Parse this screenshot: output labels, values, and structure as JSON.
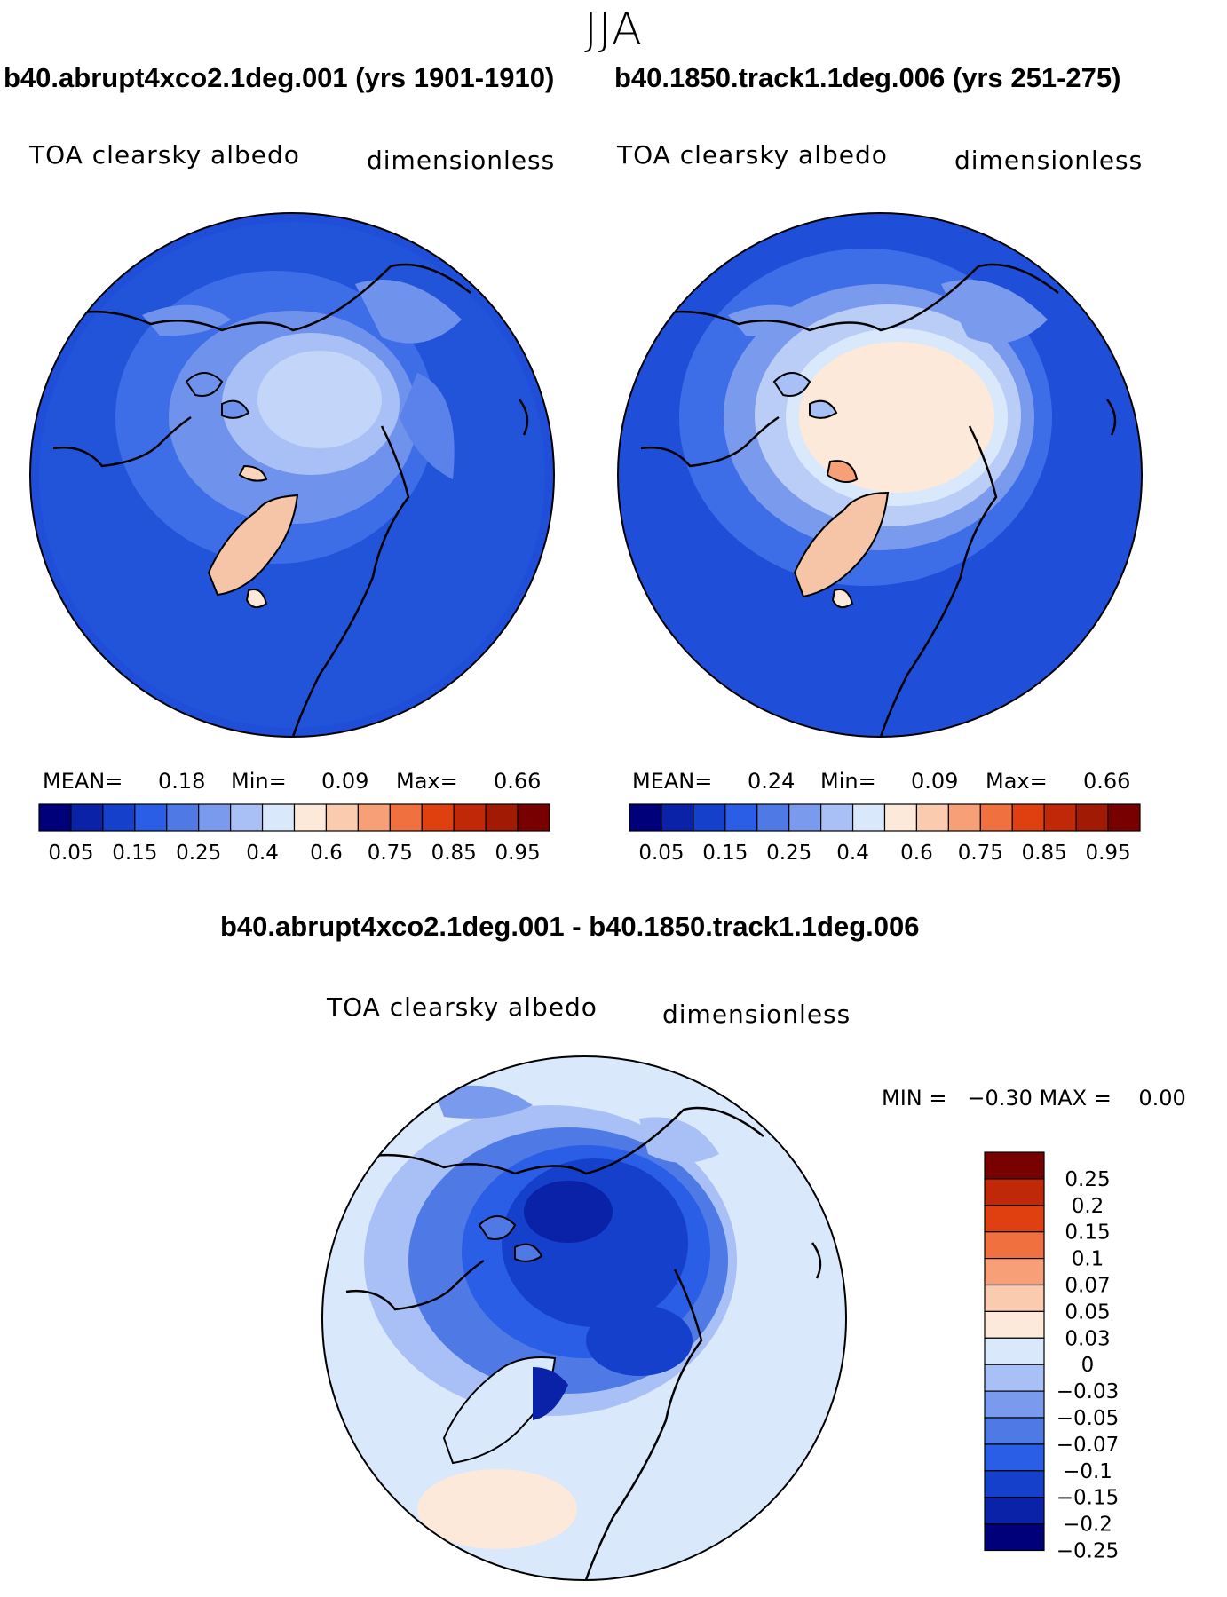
{
  "season": "JJA",
  "panels": [
    {
      "case_title": "b40.abrupt4xco2.1deg.001 (yrs 1901-1910)",
      "variable": "TOA clearsky albedo",
      "units": "dimensionless",
      "mean_label": "MEAN=",
      "mean_value": "0.18",
      "min_label": "Min=",
      "min_value": "0.09",
      "max_label": "Max=",
      "max_value": "0.66"
    },
    {
      "case_title": "b40.1850.track1.1deg.006 (yrs 251-275)",
      "variable": "TOA clearsky albedo",
      "units": "dimensionless",
      "mean_label": "MEAN=",
      "mean_value": "0.24",
      "min_label": "Min=",
      "min_value": "0.09",
      "max_label": "Max=",
      "max_value": "0.66"
    }
  ],
  "diff_panel": {
    "case_title": "b40.abrupt4xco2.1deg.001 - b40.1850.track1.1deg.006",
    "variable": "TOA clearsky albedo",
    "units": "dimensionless",
    "stats_text": "MIN =   −0.30 MAX =    0.00"
  },
  "colorbar_abs": {
    "colors": [
      "#00007a",
      "#0a22a8",
      "#1540cc",
      "#2a5ee6",
      "#4f7ae6",
      "#7a9aee",
      "#a8c0f5",
      "#d9e8fb",
      "#fde9d9",
      "#fbcbb0",
      "#f7a078",
      "#f07040",
      "#e04010",
      "#c02808",
      "#a01a04",
      "#780000"
    ],
    "labels": [
      "0.05",
      "0.15",
      "0.25",
      "0.4",
      "0.6",
      "0.75",
      "0.85",
      "0.95"
    ]
  },
  "colorbar_diff": {
    "colors": [
      "#00007a",
      "#0a22a8",
      "#1540cc",
      "#2a5ee6",
      "#4f7ae6",
      "#7a9aee",
      "#a8c0f5",
      "#d9e8fb",
      "#fde9d9",
      "#fbcbb0",
      "#f7a078",
      "#f07040",
      "#e04010",
      "#c02808",
      "#780000"
    ],
    "labels": [
      "0.25",
      "0.2",
      "0.15",
      "0.1",
      "0.07",
      "0.05",
      "0.03",
      "0",
      "−0.03",
      "−0.05",
      "−0.07",
      "−0.1",
      "−0.15",
      "−0.2",
      "−0.25"
    ]
  },
  "colors": {
    "background_field": "#1f4fd8",
    "diff_background": "#d9e8fb",
    "coastline": "#000000"
  }
}
